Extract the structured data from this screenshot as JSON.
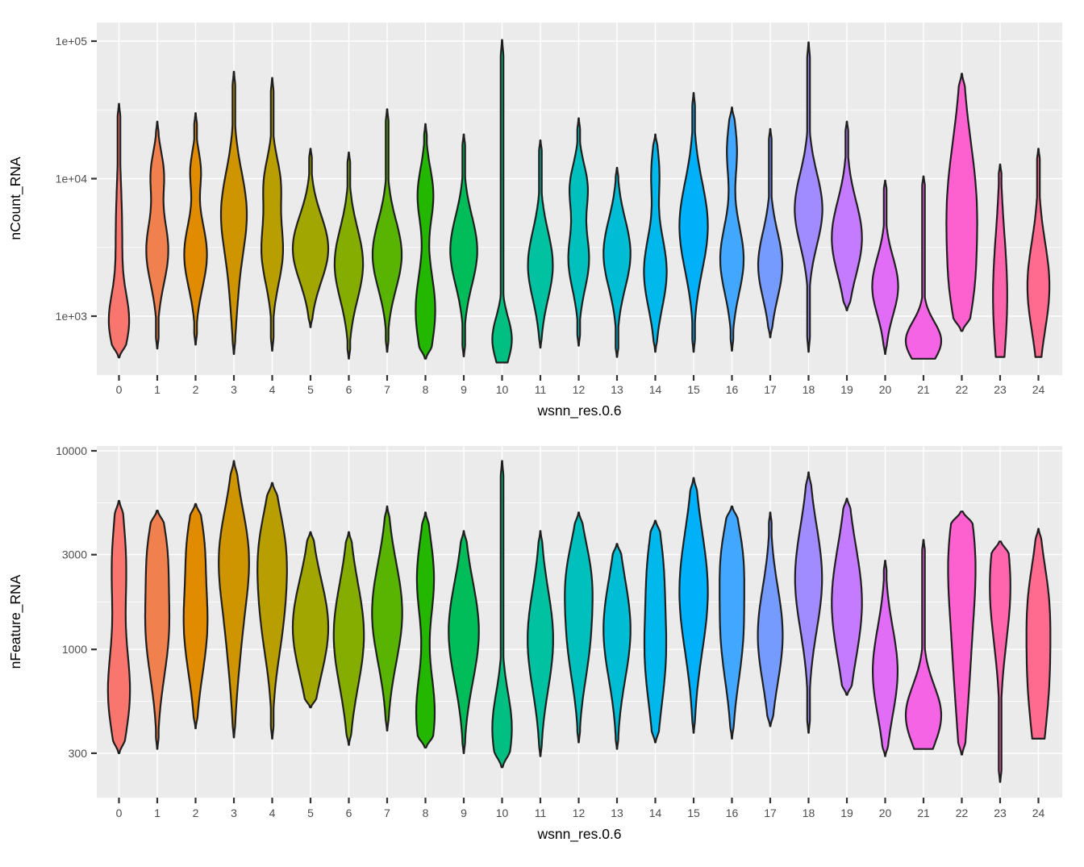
{
  "figure": {
    "background": "#FFFFFF",
    "panel_background": "#EBEBEB",
    "grid_color": "#FFFFFF",
    "violin_stroke": "#1F1F1F",
    "tick_mark_color": "#333333",
    "axis_text_color": "#4D4D4D",
    "axis_title_color": "#000000"
  },
  "chart_data": {
    "type": "violin",
    "xlabel": "wsnn_res.0.6",
    "x_categories": [
      "0",
      "1",
      "2",
      "3",
      "4",
      "5",
      "6",
      "7",
      "8",
      "9",
      "10",
      "11",
      "12",
      "13",
      "14",
      "15",
      "16",
      "17",
      "18",
      "19",
      "20",
      "21",
      "22",
      "23",
      "24"
    ],
    "panels": [
      {
        "ylabel": "nCount_RNA",
        "yscale": "log10",
        "ylim": [
          450,
          110000
        ],
        "grid": true,
        "legend": "none",
        "y_ticks": [
          {
            "value": 1000,
            "label": "1e+03"
          },
          {
            "value": 10000,
            "label": "1e+04"
          },
          {
            "value": 100000,
            "label": "1e+05"
          }
        ],
        "y_minor": [
          3162,
          31623
        ],
        "violins": [
          {
            "cluster": "0",
            "color": "#F8766D",
            "min": 500,
            "max": 35000,
            "flat_bottom": false,
            "bumps": [
              [
                900,
                0.52,
                0.2
              ],
              [
                3800,
                0.18,
                0.4
              ]
            ]
          },
          {
            "cluster": "1",
            "color": "#F1804F",
            "min": 580,
            "max": 26000,
            "flat_bottom": false,
            "bumps": [
              [
                3000,
                0.62,
                0.24
              ],
              [
                11000,
                0.34,
                0.16
              ]
            ]
          },
          {
            "cluster": "2",
            "color": "#E08B00",
            "min": 620,
            "max": 30000,
            "flat_bottom": false,
            "bumps": [
              [
                2800,
                0.64,
                0.24
              ],
              [
                11500,
                0.28,
                0.14
              ]
            ]
          },
          {
            "cluster": "3",
            "color": "#CE9500",
            "min": 530,
            "max": 60000,
            "flat_bottom": false,
            "bumps": [
              [
                5600,
                0.72,
                0.3
              ],
              [
                1400,
                0.15,
                0.25
              ]
            ]
          },
          {
            "cluster": "4",
            "color": "#B99E00",
            "min": 560,
            "max": 54000,
            "flat_bottom": false,
            "bumps": [
              [
                3000,
                0.6,
                0.24
              ],
              [
                9500,
                0.42,
                0.18
              ]
            ]
          },
          {
            "cluster": "5",
            "color": "#A2A600",
            "min": 830,
            "max": 16500,
            "flat_bottom": false,
            "bumps": [
              [
                3100,
                1.0,
                0.24
              ]
            ]
          },
          {
            "cluster": "6",
            "color": "#84AD00",
            "min": 490,
            "max": 15500,
            "flat_bottom": false,
            "bumps": [
              [
                2400,
                0.8,
                0.26
              ]
            ]
          },
          {
            "cluster": "7",
            "color": "#58B400",
            "min": 550,
            "max": 32000,
            "flat_bottom": false,
            "bumps": [
              [
                2800,
                0.82,
                0.25
              ]
            ]
          },
          {
            "cluster": "8",
            "color": "#24B700",
            "min": 490,
            "max": 25000,
            "flat_bottom": false,
            "bumps": [
              [
                1100,
                0.55,
                0.28
              ],
              [
                7600,
                0.44,
                0.2
              ]
            ]
          },
          {
            "cluster": "9",
            "color": "#00BC59",
            "min": 510,
            "max": 21000,
            "flat_bottom": false,
            "bumps": [
              [
                3000,
                0.76,
                0.25
              ]
            ]
          },
          {
            "cluster": "10",
            "color": "#00BF80",
            "min": 460,
            "max": 102000,
            "flat_bottom": true,
            "bumps": [
              [
                680,
                0.55,
                0.16
              ]
            ]
          },
          {
            "cluster": "11",
            "color": "#00C1A0",
            "min": 590,
            "max": 19000,
            "flat_bottom": false,
            "bumps": [
              [
                2350,
                0.7,
                0.25
              ]
            ]
          },
          {
            "cluster": "12",
            "color": "#00C0BD",
            "min": 610,
            "max": 27500,
            "flat_bottom": false,
            "bumps": [
              [
                2600,
                0.58,
                0.22
              ],
              [
                8700,
                0.48,
                0.17
              ]
            ]
          },
          {
            "cluster": "13",
            "color": "#00BDD6",
            "min": 505,
            "max": 12000,
            "flat_bottom": false,
            "bumps": [
              [
                2850,
                0.76,
                0.25
              ]
            ]
          },
          {
            "cluster": "14",
            "color": "#00B8EB",
            "min": 550,
            "max": 21000,
            "flat_bottom": false,
            "bumps": [
              [
                2100,
                0.64,
                0.26
              ],
              [
                11000,
                0.22,
                0.18
              ]
            ]
          },
          {
            "cluster": "15",
            "color": "#00B0F9",
            "min": 550,
            "max": 42000,
            "flat_bottom": false,
            "bumps": [
              [
                4500,
                0.8,
                0.32
              ]
            ]
          },
          {
            "cluster": "16",
            "color": "#41A7FF",
            "min": 560,
            "max": 33000,
            "flat_bottom": false,
            "bumps": [
              [
                2600,
                0.66,
                0.25
              ],
              [
                16000,
                0.28,
                0.2
              ]
            ]
          },
          {
            "cluster": "17",
            "color": "#759BFF",
            "min": 700,
            "max": 23000,
            "flat_bottom": false,
            "bumps": [
              [
                2350,
                0.68,
                0.24
              ]
            ]
          },
          {
            "cluster": "18",
            "color": "#A18CFF",
            "min": 550,
            "max": 98000,
            "flat_bottom": false,
            "bumps": [
              [
                6000,
                0.78,
                0.26
              ]
            ]
          },
          {
            "cluster": "19",
            "color": "#C47BFF",
            "min": 1100,
            "max": 26000,
            "flat_bottom": false,
            "bumps": [
              [
                3700,
                0.85,
                0.27
              ]
            ]
          },
          {
            "cluster": "20",
            "color": "#E16DF7",
            "min": 530,
            "max": 9700,
            "flat_bottom": false,
            "bumps": [
              [
                1650,
                0.73,
                0.21
              ]
            ]
          },
          {
            "cluster": "21",
            "color": "#F564E5",
            "min": 490,
            "max": 10400,
            "flat_bottom": true,
            "bumps": [
              [
                660,
                1.0,
                0.14
              ]
            ]
          },
          {
            "cluster": "22",
            "color": "#FD61CF",
            "min": 780,
            "max": 58000,
            "flat_bottom": false,
            "bumps": [
              [
                5500,
                0.85,
                0.52
              ],
              [
                1400,
                0.22,
                0.25
              ]
            ]
          },
          {
            "cluster": "23",
            "color": "#FF65AD",
            "min": 505,
            "max": 12700,
            "flat_bottom": true,
            "bumps": [
              [
                1400,
                0.4,
                0.45
              ]
            ]
          },
          {
            "cluster": "24",
            "color": "#FF6B8F",
            "min": 505,
            "max": 16500,
            "flat_bottom": true,
            "bumps": [
              [
                1650,
                0.62,
                0.32
              ]
            ]
          }
        ]
      },
      {
        "ylabel": "nFeature_RNA",
        "yscale": "log10",
        "ylim": [
          200,
          10500
        ],
        "grid": true,
        "legend": "none",
        "y_ticks": [
          {
            "value": 300,
            "label": "300"
          },
          {
            "value": 1000,
            "label": "1000"
          },
          {
            "value": 3000,
            "label": "3000"
          },
          {
            "value": 10000,
            "label": "10000"
          }
        ],
        "y_minor": [
          548,
          1732,
          5477
        ],
        "violins": [
          {
            "cluster": "0",
            "color": "#F8766D",
            "min": 300,
            "max": 5600,
            "flat_bottom": false,
            "bumps": [
              [
                600,
                0.6,
                0.22
              ],
              [
                2600,
                0.4,
                0.26
              ]
            ]
          },
          {
            "cluster": "1",
            "color": "#F1804F",
            "min": 315,
            "max": 5000,
            "flat_bottom": false,
            "bumps": [
              [
                1300,
                0.65,
                0.25
              ],
              [
                3300,
                0.38,
                0.17
              ]
            ]
          },
          {
            "cluster": "2",
            "color": "#E08B00",
            "min": 400,
            "max": 5400,
            "flat_bottom": false,
            "bumps": [
              [
                1350,
                0.66,
                0.25
              ],
              [
                3550,
                0.33,
                0.16
              ]
            ]
          },
          {
            "cluster": "3",
            "color": "#CE9500",
            "min": 360,
            "max": 8900,
            "flat_bottom": false,
            "bumps": [
              [
                3000,
                0.78,
                0.24
              ],
              [
                1100,
                0.3,
                0.25
              ]
            ]
          },
          {
            "cluster": "4",
            "color": "#B99E00",
            "min": 355,
            "max": 6900,
            "flat_bottom": false,
            "bumps": [
              [
                3400,
                0.55,
                0.2
              ],
              [
                1530,
                0.58,
                0.24
              ]
            ]
          },
          {
            "cluster": "5",
            "color": "#A2A600",
            "min": 510,
            "max": 3900,
            "flat_bottom": false,
            "bumps": [
              [
                1290,
                1.0,
                0.24
              ]
            ]
          },
          {
            "cluster": "6",
            "color": "#84AD00",
            "min": 330,
            "max": 3900,
            "flat_bottom": false,
            "bumps": [
              [
                1180,
                0.85,
                0.26
              ]
            ]
          },
          {
            "cluster": "7",
            "color": "#58B400",
            "min": 390,
            "max": 5250,
            "flat_bottom": false,
            "bumps": [
              [
                1530,
                0.85,
                0.25
              ]
            ]
          },
          {
            "cluster": "8",
            "color": "#24B700",
            "min": 320,
            "max": 4900,
            "flat_bottom": false,
            "bumps": [
              [
                2280,
                0.48,
                0.2
              ],
              [
                480,
                0.52,
                0.2
              ]
            ]
          },
          {
            "cluster": "9",
            "color": "#00BC59",
            "min": 300,
            "max": 3950,
            "flat_bottom": false,
            "bumps": [
              [
                1230,
                0.85,
                0.25
              ]
            ]
          },
          {
            "cluster": "10",
            "color": "#00BF80",
            "min": 255,
            "max": 8900,
            "flat_bottom": false,
            "bumps": [
              [
                400,
                0.55,
                0.18
              ]
            ]
          },
          {
            "cluster": "11",
            "color": "#00C1A0",
            "min": 290,
            "max": 3950,
            "flat_bottom": false,
            "bumps": [
              [
                1120,
                0.72,
                0.25
              ]
            ]
          },
          {
            "cluster": "12",
            "color": "#00C0BD",
            "min": 340,
            "max": 4900,
            "flat_bottom": false,
            "bumps": [
              [
                2430,
                0.53,
                0.18
              ],
              [
                1120,
                0.58,
                0.22
              ]
            ]
          },
          {
            "cluster": "13",
            "color": "#00BDD6",
            "min": 315,
            "max": 3400,
            "flat_bottom": false,
            "bumps": [
              [
                1260,
                0.76,
                0.25
              ]
            ]
          },
          {
            "cluster": "14",
            "color": "#00B8EB",
            "min": 340,
            "max": 4450,
            "flat_bottom": false,
            "bumps": [
              [
                1000,
                0.6,
                0.28
              ],
              [
                2800,
                0.28,
                0.18
              ]
            ]
          },
          {
            "cluster": "15",
            "color": "#00B0F9",
            "min": 380,
            "max": 7300,
            "flat_bottom": false,
            "bumps": [
              [
                1950,
                0.8,
                0.3
              ]
            ]
          },
          {
            "cluster": "16",
            "color": "#41A7FF",
            "min": 355,
            "max": 5250,
            "flat_bottom": false,
            "bumps": [
              [
                1230,
                0.62,
                0.25
              ],
              [
                3050,
                0.44,
                0.18
              ]
            ]
          },
          {
            "cluster": "17",
            "color": "#759BFF",
            "min": 410,
            "max": 4900,
            "flat_bottom": false,
            "bumps": [
              [
                1180,
                0.7,
                0.24
              ]
            ]
          },
          {
            "cluster": "18",
            "color": "#A18CFF",
            "min": 380,
            "max": 7800,
            "flat_bottom": false,
            "bumps": [
              [
                2280,
                0.76,
                0.26
              ]
            ]
          },
          {
            "cluster": "19",
            "color": "#C47BFF",
            "min": 590,
            "max": 5750,
            "flat_bottom": false,
            "bumps": [
              [
                1720,
                0.85,
                0.28
              ]
            ]
          },
          {
            "cluster": "20",
            "color": "#E16DF7",
            "min": 290,
            "max": 2800,
            "flat_bottom": false,
            "bumps": [
              [
                775,
                0.7,
                0.22
              ]
            ]
          },
          {
            "cluster": "21",
            "color": "#F564E5",
            "min": 315,
            "max": 3560,
            "flat_bottom": true,
            "bumps": [
              [
                465,
                1.0,
                0.15
              ]
            ]
          },
          {
            "cluster": "22",
            "color": "#FD61CF",
            "min": 295,
            "max": 4950,
            "flat_bottom": false,
            "bumps": [
              [
                3100,
                0.62,
                0.28
              ],
              [
                900,
                0.42,
                0.35
              ]
            ]
          },
          {
            "cluster": "23",
            "color": "#FF65AD",
            "min": 215,
            "max": 3500,
            "flat_bottom": false,
            "bumps": [
              [
                2080,
                0.58,
                0.28
              ]
            ]
          },
          {
            "cluster": "24",
            "color": "#FF6B8F",
            "min": 355,
            "max": 4050,
            "flat_bottom": true,
            "bumps": [
              [
                800,
                0.62,
                0.33
              ],
              [
                1900,
                0.25,
                0.18
              ]
            ]
          }
        ]
      }
    ]
  }
}
